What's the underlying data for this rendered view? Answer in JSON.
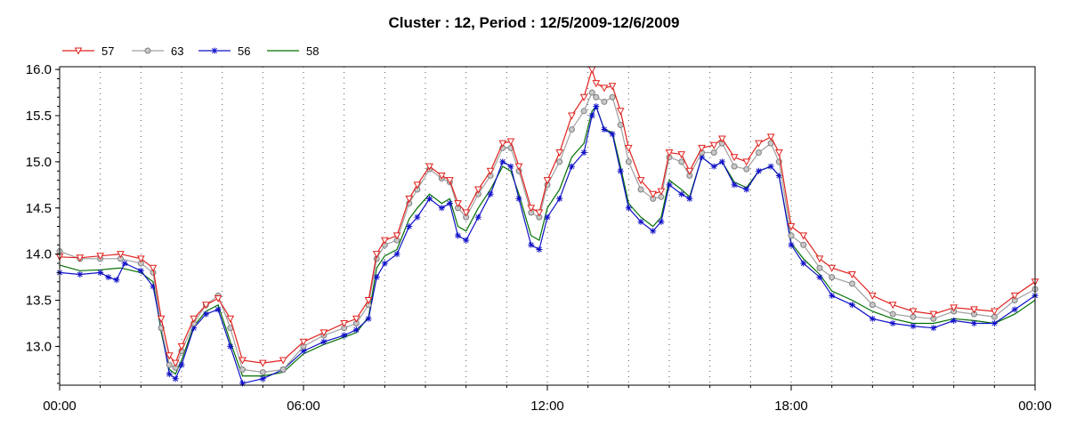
{
  "chart_data": {
    "type": "line",
    "title": "Cluster : 12, Period : 12/5/2009-12/6/2009",
    "xlabel": "",
    "ylabel": "",
    "x_unit": "hour",
    "xlim": [
      0,
      24
    ],
    "ylim": [
      12.58,
      16.03
    ],
    "x_ticks": [
      {
        "value": 0,
        "label": "00:00"
      },
      {
        "value": 6,
        "label": "06:00"
      },
      {
        "value": 12,
        "label": "12:00"
      },
      {
        "value": 18,
        "label": "18:00"
      },
      {
        "value": 24,
        "label": "00:00"
      }
    ],
    "y_ticks": [
      {
        "value": 13.0,
        "label": "13.0"
      },
      {
        "value": 13.5,
        "label": "13.5"
      },
      {
        "value": 14.0,
        "label": "14.0"
      },
      {
        "value": 14.5,
        "label": "14.5"
      },
      {
        "value": 15.0,
        "label": "15.0"
      },
      {
        "value": 15.5,
        "label": "15.5"
      },
      {
        "value": 16.0,
        "label": "16.0"
      }
    ],
    "grid": {
      "x_every_hours": 1,
      "y": false
    },
    "legend_position": "top-left",
    "series": [
      {
        "name": "57",
        "color": "#e0201c",
        "marker": "triangle-down",
        "x": [
          0,
          0.5,
          1.0,
          1.5,
          2.0,
          2.3,
          2.5,
          2.7,
          2.85,
          3.0,
          3.3,
          3.6,
          3.9,
          4.2,
          4.5,
          5.0,
          5.5,
          6.0,
          6.5,
          7.0,
          7.3,
          7.6,
          7.8,
          8.0,
          8.3,
          8.6,
          8.8,
          9.1,
          9.4,
          9.6,
          9.8,
          10.0,
          10.3,
          10.6,
          10.9,
          11.1,
          11.3,
          11.6,
          11.8,
          12.0,
          12.3,
          12.6,
          12.9,
          13.1,
          13.2,
          13.4,
          13.6,
          13.8,
          14.0,
          14.3,
          14.6,
          14.8,
          15.0,
          15.3,
          15.5,
          15.8,
          16.1,
          16.3,
          16.6,
          16.9,
          17.2,
          17.5,
          17.7,
          18.0,
          18.3,
          18.7,
          19.0,
          19.5,
          20.0,
          20.5,
          21.0,
          21.5,
          22.0,
          22.5,
          23.0,
          23.5,
          24.0
        ],
        "y": [
          13.97,
          13.96,
          13.98,
          14.0,
          13.95,
          13.85,
          13.3,
          12.9,
          12.82,
          13.0,
          13.3,
          13.45,
          13.52,
          13.3,
          12.85,
          12.82,
          12.85,
          13.05,
          13.15,
          13.25,
          13.3,
          13.5,
          14.0,
          14.15,
          14.2,
          14.6,
          14.75,
          14.95,
          14.85,
          14.8,
          14.55,
          14.45,
          14.7,
          14.9,
          15.2,
          15.22,
          14.95,
          14.5,
          14.45,
          14.8,
          15.1,
          15.5,
          15.7,
          16.0,
          15.85,
          15.8,
          15.82,
          15.55,
          15.15,
          14.8,
          14.65,
          14.68,
          15.1,
          15.08,
          14.9,
          15.15,
          15.18,
          15.25,
          15.05,
          15.0,
          15.2,
          15.27,
          15.1,
          14.3,
          14.2,
          13.95,
          13.85,
          13.78,
          13.55,
          13.45,
          13.38,
          13.35,
          13.42,
          13.4,
          13.38,
          13.55,
          13.7
        ]
      },
      {
        "name": "63",
        "color": "#a0a0a0",
        "marker": "circle",
        "x": [
          0,
          0.5,
          1.0,
          1.5,
          2.0,
          2.3,
          2.5,
          2.7,
          2.85,
          3.0,
          3.3,
          3.6,
          3.9,
          4.2,
          4.5,
          5.0,
          5.5,
          6.0,
          6.5,
          7.0,
          7.3,
          7.6,
          7.8,
          8.0,
          8.3,
          8.6,
          8.8,
          9.1,
          9.4,
          9.6,
          9.8,
          10.0,
          10.3,
          10.6,
          10.9,
          11.1,
          11.3,
          11.6,
          11.8,
          12.0,
          12.3,
          12.6,
          12.9,
          13.1,
          13.2,
          13.4,
          13.6,
          13.8,
          14.0,
          14.3,
          14.6,
          14.8,
          15.0,
          15.3,
          15.5,
          15.8,
          16.1,
          16.3,
          16.6,
          16.9,
          17.2,
          17.5,
          17.7,
          18.0,
          18.3,
          18.7,
          19.0,
          19.5,
          20.0,
          20.5,
          21.0,
          21.5,
          22.0,
          22.5,
          23.0,
          23.5,
          24.0
        ],
        "y": [
          14.03,
          13.95,
          13.95,
          13.95,
          13.9,
          13.8,
          13.2,
          12.8,
          12.77,
          12.95,
          13.25,
          13.45,
          13.55,
          13.2,
          12.75,
          12.72,
          12.75,
          13.0,
          13.12,
          13.2,
          13.25,
          13.45,
          13.95,
          14.1,
          14.15,
          14.55,
          14.7,
          14.92,
          14.82,
          14.78,
          14.5,
          14.4,
          14.65,
          14.85,
          15.15,
          15.15,
          14.9,
          14.45,
          14.4,
          14.75,
          15.0,
          15.35,
          15.55,
          15.75,
          15.7,
          15.65,
          15.7,
          15.4,
          15.0,
          14.7,
          14.6,
          14.62,
          15.05,
          15.0,
          14.85,
          15.1,
          15.1,
          15.2,
          14.95,
          14.92,
          15.1,
          15.2,
          15.0,
          14.2,
          14.1,
          13.85,
          13.75,
          13.68,
          13.45,
          13.35,
          13.32,
          13.3,
          13.38,
          13.35,
          13.32,
          13.5,
          13.62
        ]
      },
      {
        "name": "56",
        "color": "#1010c8",
        "marker": "star",
        "x": [
          0,
          0.5,
          1.0,
          1.2,
          1.4,
          1.6,
          2.0,
          2.3,
          2.5,
          2.7,
          2.85,
          3.0,
          3.3,
          3.6,
          3.9,
          4.2,
          4.5,
          5.0,
          5.5,
          6.0,
          6.5,
          7.0,
          7.3,
          7.6,
          7.8,
          8.0,
          8.3,
          8.6,
          8.8,
          9.1,
          9.4,
          9.6,
          9.8,
          10.0,
          10.3,
          10.6,
          10.9,
          11.1,
          11.3,
          11.6,
          11.8,
          12.0,
          12.3,
          12.6,
          12.9,
          13.1,
          13.2,
          13.4,
          13.6,
          13.8,
          14.0,
          14.3,
          14.6,
          14.8,
          15.0,
          15.3,
          15.5,
          15.8,
          16.1,
          16.3,
          16.6,
          16.9,
          17.2,
          17.5,
          17.7,
          18.0,
          18.3,
          18.7,
          19.0,
          19.5,
          20.0,
          20.5,
          21.0,
          21.5,
          22.0,
          22.5,
          23.0,
          23.5,
          24.0
        ],
        "y": [
          13.8,
          13.78,
          13.8,
          13.75,
          13.72,
          13.9,
          13.82,
          13.65,
          13.2,
          12.7,
          12.65,
          12.8,
          13.2,
          13.35,
          13.4,
          13.0,
          12.6,
          12.65,
          12.75,
          12.95,
          13.05,
          13.12,
          13.18,
          13.3,
          13.75,
          13.9,
          14.0,
          14.3,
          14.4,
          14.6,
          14.5,
          14.55,
          14.2,
          14.15,
          14.4,
          14.65,
          15.0,
          14.95,
          14.6,
          14.1,
          14.05,
          14.4,
          14.6,
          14.95,
          15.1,
          15.5,
          15.6,
          15.35,
          15.3,
          14.9,
          14.5,
          14.35,
          14.25,
          14.35,
          14.75,
          14.65,
          14.6,
          15.05,
          14.95,
          15.0,
          14.75,
          14.7,
          14.9,
          14.95,
          14.85,
          14.1,
          13.9,
          13.75,
          13.55,
          13.45,
          13.3,
          13.25,
          13.22,
          13.2,
          13.28,
          13.25,
          13.25,
          13.4,
          13.55
        ]
      },
      {
        "name": "58",
        "color": "#007000",
        "marker": "none",
        "x": [
          0,
          0.5,
          1.0,
          1.5,
          2.0,
          2.3,
          2.5,
          2.7,
          2.85,
          3.0,
          3.3,
          3.6,
          3.9,
          4.2,
          4.5,
          5.0,
          5.5,
          6.0,
          6.5,
          7.0,
          7.3,
          7.6,
          7.8,
          8.0,
          8.3,
          8.6,
          8.8,
          9.1,
          9.4,
          9.6,
          9.8,
          10.0,
          10.3,
          10.6,
          10.9,
          11.1,
          11.3,
          11.6,
          11.8,
          12.0,
          12.3,
          12.6,
          12.9,
          13.1,
          13.2,
          13.4,
          13.6,
          13.8,
          14.0,
          14.3,
          14.6,
          14.8,
          15.0,
          15.3,
          15.5,
          15.8,
          16.1,
          16.3,
          16.6,
          16.9,
          17.2,
          17.5,
          17.7,
          18.0,
          18.3,
          18.7,
          19.0,
          19.5,
          20.0,
          20.5,
          21.0,
          21.5,
          22.0,
          22.5,
          23.0,
          23.5,
          24.0
        ],
        "y": [
          13.88,
          13.82,
          13.83,
          13.85,
          13.8,
          13.7,
          13.15,
          12.75,
          12.7,
          12.85,
          13.22,
          13.38,
          13.45,
          13.05,
          12.68,
          12.68,
          12.72,
          12.92,
          13.02,
          13.1,
          13.15,
          13.32,
          13.85,
          13.98,
          14.05,
          14.38,
          14.5,
          14.65,
          14.55,
          14.6,
          14.3,
          14.25,
          14.5,
          14.7,
          14.95,
          14.9,
          14.65,
          14.2,
          14.15,
          14.5,
          14.7,
          15.05,
          15.2,
          15.55,
          15.6,
          15.35,
          15.32,
          14.95,
          14.55,
          14.4,
          14.3,
          14.4,
          14.8,
          14.7,
          14.62,
          15.05,
          14.95,
          15.0,
          14.78,
          14.72,
          14.9,
          14.95,
          14.85,
          14.12,
          13.95,
          13.78,
          13.6,
          13.5,
          13.38,
          13.3,
          13.25,
          13.25,
          13.3,
          13.28,
          13.25,
          13.35,
          13.5
        ]
      }
    ]
  }
}
